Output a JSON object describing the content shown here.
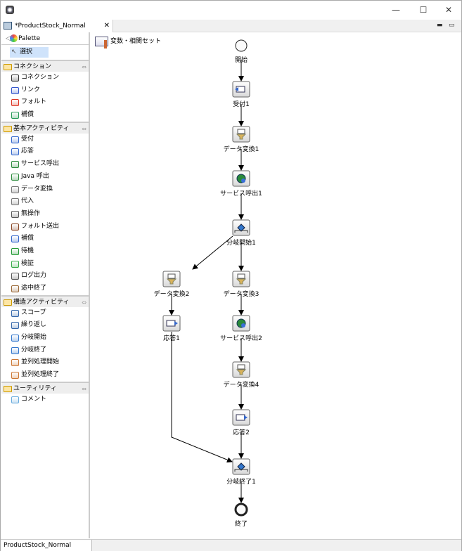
{
  "window": {
    "minimize": "—",
    "maximize": "☐",
    "close": "✕"
  },
  "editor_tab": {
    "title": "*ProductStock_Normal",
    "close": "✕"
  },
  "view_buttons": {
    "minimize": "▬",
    "maximize": "▭"
  },
  "palette": {
    "title": "Palette",
    "select": "選択",
    "drawers": [
      {
        "label": "コネクション",
        "items": [
          {
            "label": "コネクション",
            "icon": "connection-icon",
            "color": "#333333"
          },
          {
            "label": "リンク",
            "icon": "link-icon",
            "color": "#3355cc"
          },
          {
            "label": "フォルト",
            "icon": "fault-icon",
            "color": "#dd3322"
          },
          {
            "label": "補償",
            "icon": "compensate-icon",
            "color": "#229955"
          }
        ]
      },
      {
        "label": "基本アクティビティ",
        "items": [
          {
            "label": "受付",
            "icon": "receive-icon",
            "color": "#3366cc"
          },
          {
            "label": "応答",
            "icon": "reply-icon",
            "color": "#3366cc"
          },
          {
            "label": "サービス呼出",
            "icon": "service-invoke-icon",
            "color": "#2a8a3a"
          },
          {
            "label": "Java 呼出",
            "icon": "java-invoke-icon",
            "color": "#2a8a3a"
          },
          {
            "label": "データ変換",
            "icon": "data-transform-icon",
            "color": "#777777"
          },
          {
            "label": "代入",
            "icon": "assign-icon",
            "color": "#777777"
          },
          {
            "label": "無操作",
            "icon": "empty-icon",
            "color": "#555555"
          },
          {
            "label": "フォルト送出",
            "icon": "throw-icon",
            "color": "#884422"
          },
          {
            "label": "補償",
            "icon": "compensate-activity-icon",
            "color": "#3366cc"
          },
          {
            "label": "待機",
            "icon": "wait-icon",
            "color": "#229933"
          },
          {
            "label": "検証",
            "icon": "validate-icon",
            "color": "#33aa44"
          },
          {
            "label": "ログ出力",
            "icon": "log-icon",
            "color": "#555555"
          },
          {
            "label": "途中終了",
            "icon": "exit-icon",
            "color": "#996633"
          }
        ]
      },
      {
        "label": "構造アクティビティ",
        "items": [
          {
            "label": "スコープ",
            "icon": "scope-icon",
            "color": "#3366aa"
          },
          {
            "label": "繰り返し",
            "icon": "loop-icon",
            "color": "#3366aa"
          },
          {
            "label": "分岐開始",
            "icon": "branch-start-icon",
            "color": "#3377cc"
          },
          {
            "label": "分岐終了",
            "icon": "branch-end-icon",
            "color": "#3377cc"
          },
          {
            "label": "並列処理開始",
            "icon": "parallel-start-icon",
            "color": "#cc7733"
          },
          {
            "label": "並列処理終了",
            "icon": "parallel-end-icon",
            "color": "#cc7733"
          }
        ]
      },
      {
        "label": "ユーティリティ",
        "items": [
          {
            "label": "コメント",
            "icon": "comment-icon",
            "color": "#66aadd"
          }
        ]
      }
    ]
  },
  "variables_label": "変数・相関セット",
  "diagram": {
    "nodes": [
      {
        "id": "start",
        "label": "開始",
        "type": "start"
      },
      {
        "id": "recv1",
        "label": "受付1",
        "type": "receive"
      },
      {
        "id": "dt1",
        "label": "データ変換1",
        "type": "transform"
      },
      {
        "id": "svc1",
        "label": "サービス呼出1",
        "type": "invoke"
      },
      {
        "id": "br1",
        "label": "分岐開始1",
        "type": "branch-start"
      },
      {
        "id": "dt2",
        "label": "データ変換2",
        "type": "transform"
      },
      {
        "id": "dt3",
        "label": "データ変換3",
        "type": "transform"
      },
      {
        "id": "rep1",
        "label": "応答1",
        "type": "reply"
      },
      {
        "id": "svc2",
        "label": "サービス呼出2",
        "type": "invoke"
      },
      {
        "id": "dt4",
        "label": "データ変換4",
        "type": "transform"
      },
      {
        "id": "rep2",
        "label": "応答2",
        "type": "reply"
      },
      {
        "id": "bre1",
        "label": "分岐終了1",
        "type": "branch-end"
      },
      {
        "id": "end",
        "label": "終了",
        "type": "end"
      }
    ],
    "edges": [
      [
        "start",
        "recv1"
      ],
      [
        "recv1",
        "dt1"
      ],
      [
        "dt1",
        "svc1"
      ],
      [
        "svc1",
        "br1"
      ],
      [
        "br1",
        "dt2"
      ],
      [
        "br1",
        "dt3"
      ],
      [
        "dt2",
        "rep1"
      ],
      [
        "dt3",
        "svc2"
      ],
      [
        "svc2",
        "dt4"
      ],
      [
        "dt4",
        "rep2"
      ],
      [
        "rep2",
        "bre1"
      ],
      [
        "rep1",
        "bre1"
      ],
      [
        "bre1",
        "end"
      ]
    ]
  },
  "bottom_tab": "ProductStock_Normal"
}
